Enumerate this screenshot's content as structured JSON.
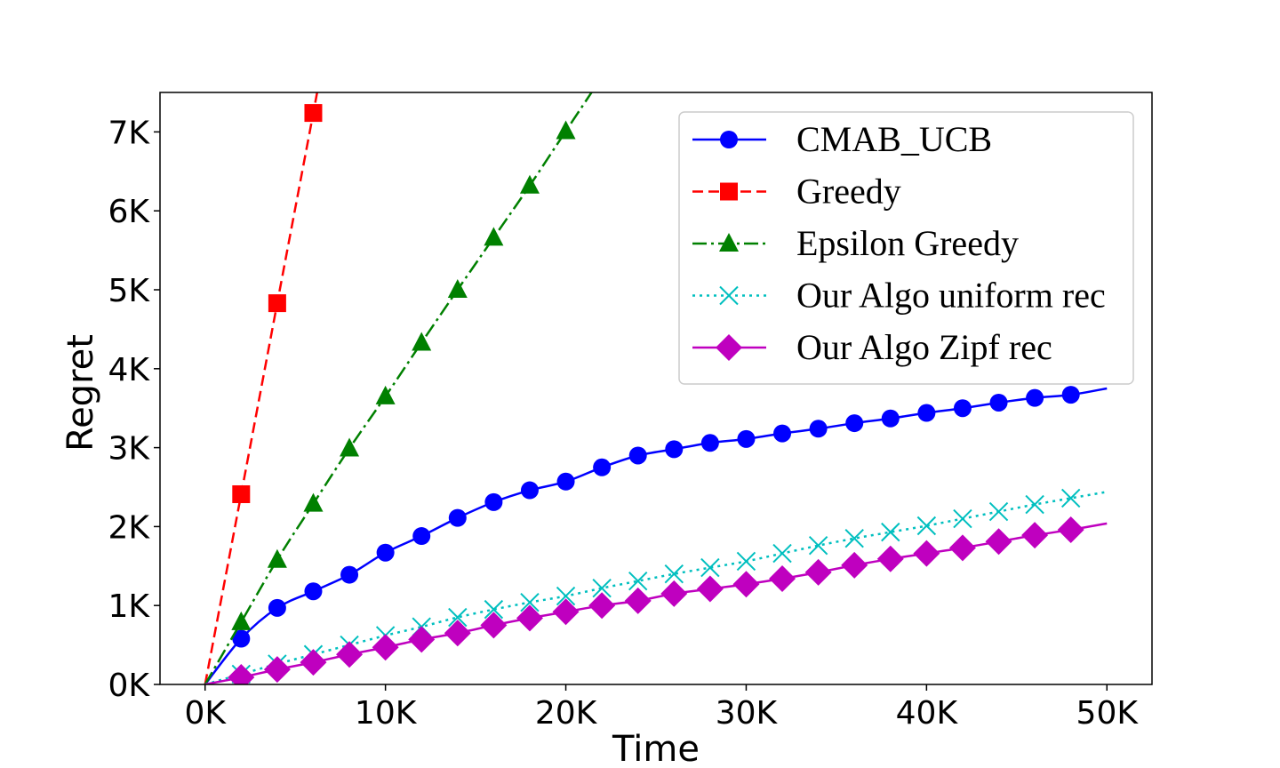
{
  "chart_data": {
    "type": "line",
    "xlabel": "Time",
    "ylabel": "Regret",
    "xlim": [
      -2500,
      52500
    ],
    "ylim": [
      0,
      7500
    ],
    "x_ticks": [
      0,
      10000,
      20000,
      30000,
      40000,
      50000
    ],
    "x_tick_labels": [
      "0K",
      "10K",
      "20K",
      "30K",
      "40K",
      "50K"
    ],
    "y_ticks": [
      0,
      1000,
      2000,
      3000,
      4000,
      5000,
      6000,
      7000
    ],
    "y_tick_labels": [
      "0K",
      "1K",
      "2K",
      "3K",
      "4K",
      "5K",
      "6K",
      "7K"
    ],
    "legend_position": "top-right",
    "series": [
      {
        "name": "CMAB_UCB",
        "color": "#0000ff",
        "dash": "solid",
        "marker": "circle",
        "x": [
          0,
          2000,
          4000,
          6000,
          8000,
          10000,
          12000,
          14000,
          16000,
          18000,
          20000,
          22000,
          24000,
          26000,
          28000,
          30000,
          32000,
          34000,
          36000,
          38000,
          40000,
          42000,
          44000,
          46000,
          48000,
          50000
        ],
        "y": [
          0,
          580,
          970,
          1180,
          1390,
          1670,
          1880,
          2110,
          2310,
          2460,
          2570,
          2750,
          2900,
          2980,
          3060,
          3110,
          3180,
          3240,
          3310,
          3370,
          3440,
          3500,
          3570,
          3630,
          3670,
          3750
        ],
        "markers_until": 48000
      },
      {
        "name": "Greedy",
        "color": "#ff0000",
        "dash": "dashed",
        "marker": "square",
        "x": [
          0,
          2000,
          4000,
          6000,
          6250
        ],
        "y": [
          0,
          2410,
          4830,
          7240,
          7560
        ],
        "markers_until": 6000
      },
      {
        "name": "Epsilon Greedy",
        "color": "#008000",
        "dash": "dashdot",
        "marker": "triangle",
        "x": [
          0,
          2000,
          4000,
          6000,
          8000,
          10000,
          12000,
          14000,
          16000,
          18000,
          20000,
          21600
        ],
        "y": [
          0,
          790,
          1580,
          2290,
          2990,
          3650,
          4330,
          5000,
          5660,
          6320,
          7010,
          7560
        ],
        "markers_until": 20000
      },
      {
        "name": "Our Algo uniform rec",
        "color": "#00bfbf",
        "dash": "dotted",
        "marker": "x",
        "x": [
          0,
          2000,
          4000,
          6000,
          8000,
          10000,
          12000,
          14000,
          16000,
          18000,
          20000,
          22000,
          24000,
          26000,
          28000,
          30000,
          32000,
          34000,
          36000,
          38000,
          40000,
          42000,
          44000,
          46000,
          48000,
          50000
        ],
        "y": [
          0,
          130,
          260,
          380,
          500,
          620,
          730,
          850,
          950,
          1040,
          1120,
          1220,
          1310,
          1400,
          1480,
          1560,
          1660,
          1760,
          1850,
          1930,
          2010,
          2100,
          2190,
          2280,
          2360,
          2440
        ],
        "markers_until": 48000
      },
      {
        "name": "Our Algo Zipf rec",
        "color": "#bf00bf",
        "dash": "solid",
        "marker": "diamond",
        "x": [
          0,
          2000,
          4000,
          6000,
          8000,
          10000,
          12000,
          14000,
          16000,
          18000,
          20000,
          22000,
          24000,
          26000,
          28000,
          30000,
          32000,
          34000,
          36000,
          38000,
          40000,
          42000,
          44000,
          46000,
          48000,
          50000
        ],
        "y": [
          0,
          90,
          190,
          280,
          380,
          470,
          570,
          650,
          750,
          840,
          920,
          1000,
          1060,
          1150,
          1210,
          1270,
          1340,
          1420,
          1510,
          1590,
          1660,
          1730,
          1810,
          1890,
          1960,
          2040
        ],
        "markers_until": 48000
      }
    ]
  }
}
